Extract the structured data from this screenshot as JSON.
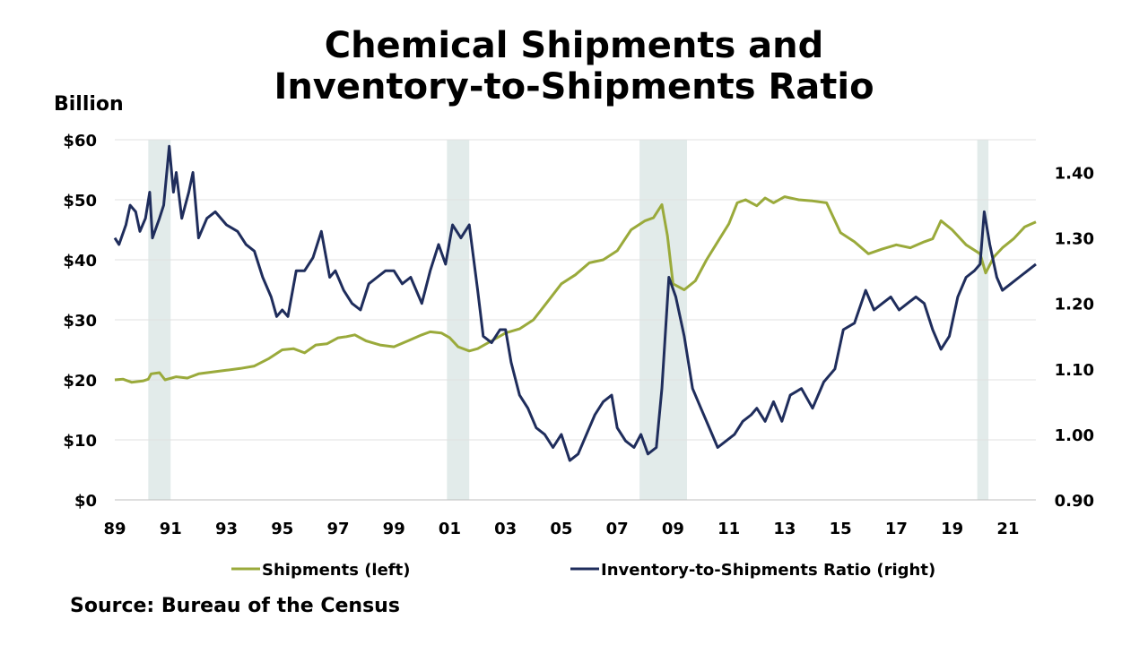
{
  "title_line1": "Chemical Shipments and",
  "title_line2": "Inventory-to-Shipments Ratio",
  "unit_label": "Billion",
  "source": "Source: Bureau of the Census",
  "chart_data": {
    "type": "line",
    "x_range": [
      1989,
      2022
    ],
    "x_tick_labels": [
      "89",
      "91",
      "93",
      "95",
      "97",
      "99",
      "01",
      "03",
      "05",
      "07",
      "09",
      "11",
      "13",
      "15",
      "17",
      "19",
      "21"
    ],
    "x_tick_years": [
      1989,
      1991,
      1993,
      1995,
      1997,
      1999,
      2001,
      2003,
      2005,
      2007,
      2009,
      2011,
      2013,
      2015,
      2017,
      2019,
      2021
    ],
    "y_left": {
      "range": [
        0,
        60
      ],
      "ticks": [
        0,
        10,
        20,
        30,
        40,
        50,
        60
      ],
      "tick_labels": [
        "$0",
        "$10",
        "$20",
        "$30",
        "$40",
        "$50",
        "$60"
      ]
    },
    "y_right": {
      "range": [
        0.9,
        1.45
      ],
      "ticks": [
        0.9,
        1.0,
        1.1,
        1.2,
        1.3,
        1.4
      ],
      "tick_labels": [
        "0.90",
        "1.00",
        "1.10",
        "1.20",
        "1.30",
        "1.40"
      ]
    },
    "gridlines": true,
    "legend_position": "bottom",
    "recessions": [
      [
        1990.2,
        1991.0
      ],
      [
        2000.9,
        2001.7
      ],
      [
        2007.8,
        2009.5
      ],
      [
        2019.9,
        2020.3
      ]
    ],
    "series": [
      {
        "name": "Shipments (left)",
        "axis": "left",
        "color": "#9aaa3b",
        "points": [
          [
            1989.0,
            20.0
          ],
          [
            1989.3,
            20.1
          ],
          [
            1989.6,
            19.6
          ],
          [
            1990.0,
            19.8
          ],
          [
            1990.2,
            20.1
          ],
          [
            1990.3,
            21.0
          ],
          [
            1990.6,
            21.2
          ],
          [
            1990.8,
            20.0
          ],
          [
            1991.2,
            20.5
          ],
          [
            1991.6,
            20.3
          ],
          [
            1992.0,
            21.0
          ],
          [
            1992.5,
            21.3
          ],
          [
            1993.0,
            21.6
          ],
          [
            1993.5,
            21.9
          ],
          [
            1994.0,
            22.3
          ],
          [
            1994.5,
            23.5
          ],
          [
            1995.0,
            25.0
          ],
          [
            1995.4,
            25.2
          ],
          [
            1995.8,
            24.5
          ],
          [
            1996.2,
            25.8
          ],
          [
            1996.6,
            26.0
          ],
          [
            1997.0,
            27.0
          ],
          [
            1997.3,
            27.2
          ],
          [
            1997.6,
            27.5
          ],
          [
            1998.0,
            26.5
          ],
          [
            1998.5,
            25.8
          ],
          [
            1999.0,
            25.5
          ],
          [
            1999.5,
            26.5
          ],
          [
            2000.0,
            27.5
          ],
          [
            2000.3,
            28.0
          ],
          [
            2000.7,
            27.8
          ],
          [
            2001.0,
            27.0
          ],
          [
            2001.3,
            25.5
          ],
          [
            2001.7,
            24.8
          ],
          [
            2002.0,
            25.2
          ],
          [
            2002.5,
            26.5
          ],
          [
            2003.0,
            27.8
          ],
          [
            2003.5,
            28.5
          ],
          [
            2004.0,
            30.0
          ],
          [
            2004.5,
            33.0
          ],
          [
            2005.0,
            36.0
          ],
          [
            2005.5,
            37.5
          ],
          [
            2006.0,
            39.5
          ],
          [
            2006.5,
            40.0
          ],
          [
            2007.0,
            41.5
          ],
          [
            2007.5,
            45.0
          ],
          [
            2008.0,
            46.5
          ],
          [
            2008.3,
            47.0
          ],
          [
            2008.6,
            49.2
          ],
          [
            2008.8,
            44.0
          ],
          [
            2009.0,
            36.0
          ],
          [
            2009.4,
            35.0
          ],
          [
            2009.8,
            36.5
          ],
          [
            2010.2,
            40.0
          ],
          [
            2010.6,
            43.0
          ],
          [
            2011.0,
            46.0
          ],
          [
            2011.3,
            49.5
          ],
          [
            2011.6,
            50.0
          ],
          [
            2012.0,
            49.0
          ],
          [
            2012.3,
            50.3
          ],
          [
            2012.6,
            49.5
          ],
          [
            2013.0,
            50.5
          ],
          [
            2013.5,
            50.0
          ],
          [
            2014.0,
            49.8
          ],
          [
            2014.5,
            49.5
          ],
          [
            2015.0,
            44.5
          ],
          [
            2015.5,
            43.0
          ],
          [
            2016.0,
            41.0
          ],
          [
            2016.5,
            41.8
          ],
          [
            2017.0,
            42.5
          ],
          [
            2017.5,
            42.0
          ],
          [
            2018.0,
            43.0
          ],
          [
            2018.3,
            43.5
          ],
          [
            2018.6,
            46.5
          ],
          [
            2019.0,
            45.0
          ],
          [
            2019.5,
            42.5
          ],
          [
            2020.0,
            41.0
          ],
          [
            2020.2,
            37.8
          ],
          [
            2020.5,
            40.5
          ],
          [
            2020.8,
            42.0
          ],
          [
            2021.2,
            43.5
          ],
          [
            2021.6,
            45.5
          ],
          [
            2022.0,
            46.3
          ]
        ]
      },
      {
        "name": "Inventory-to-Shipments Ratio (right)",
        "axis": "right",
        "color": "#1f2d5c",
        "points": [
          [
            1989.0,
            1.3
          ],
          [
            1989.15,
            1.29
          ],
          [
            1989.4,
            1.32
          ],
          [
            1989.55,
            1.35
          ],
          [
            1989.75,
            1.34
          ],
          [
            1989.9,
            1.31
          ],
          [
            1990.1,
            1.33
          ],
          [
            1990.25,
            1.37
          ],
          [
            1990.35,
            1.3
          ],
          [
            1990.6,
            1.33
          ],
          [
            1990.75,
            1.35
          ],
          [
            1990.95,
            1.44
          ],
          [
            1991.1,
            1.37
          ],
          [
            1991.2,
            1.4
          ],
          [
            1991.4,
            1.33
          ],
          [
            1991.65,
            1.37
          ],
          [
            1991.8,
            1.4
          ],
          [
            1992.0,
            1.3
          ],
          [
            1992.3,
            1.33
          ],
          [
            1992.6,
            1.34
          ],
          [
            1993.0,
            1.32
          ],
          [
            1993.4,
            1.31
          ],
          [
            1993.7,
            1.29
          ],
          [
            1994.0,
            1.28
          ],
          [
            1994.3,
            1.24
          ],
          [
            1994.6,
            1.21
          ],
          [
            1994.8,
            1.18
          ],
          [
            1995.0,
            1.19
          ],
          [
            1995.2,
            1.18
          ],
          [
            1995.5,
            1.25
          ],
          [
            1995.8,
            1.25
          ],
          [
            1996.1,
            1.27
          ],
          [
            1996.4,
            1.31
          ],
          [
            1996.7,
            1.24
          ],
          [
            1996.9,
            1.25
          ],
          [
            1997.2,
            1.22
          ],
          [
            1997.5,
            1.2
          ],
          [
            1997.8,
            1.19
          ],
          [
            1998.1,
            1.23
          ],
          [
            1998.4,
            1.24
          ],
          [
            1998.7,
            1.25
          ],
          [
            1999.0,
            1.25
          ],
          [
            1999.3,
            1.23
          ],
          [
            1999.6,
            1.24
          ],
          [
            2000.0,
            1.2
          ],
          [
            2000.3,
            1.25
          ],
          [
            2000.6,
            1.29
          ],
          [
            2000.85,
            1.26
          ],
          [
            2001.1,
            1.32
          ],
          [
            2001.4,
            1.3
          ],
          [
            2001.7,
            1.32
          ],
          [
            2002.0,
            1.22
          ],
          [
            2002.2,
            1.15
          ],
          [
            2002.5,
            1.14
          ],
          [
            2002.8,
            1.16
          ],
          [
            2003.0,
            1.16
          ],
          [
            2003.2,
            1.11
          ],
          [
            2003.5,
            1.06
          ],
          [
            2003.8,
            1.04
          ],
          [
            2004.1,
            1.01
          ],
          [
            2004.4,
            1.0
          ],
          [
            2004.7,
            0.98
          ],
          [
            2005.0,
            1.0
          ],
          [
            2005.3,
            0.96
          ],
          [
            2005.6,
            0.97
          ],
          [
            2005.9,
            1.0
          ],
          [
            2006.2,
            1.03
          ],
          [
            2006.5,
            1.05
          ],
          [
            2006.8,
            1.06
          ],
          [
            2007.0,
            1.01
          ],
          [
            2007.3,
            0.99
          ],
          [
            2007.6,
            0.98
          ],
          [
            2007.85,
            1.0
          ],
          [
            2008.1,
            0.97
          ],
          [
            2008.4,
            0.98
          ],
          [
            2008.6,
            1.07
          ],
          [
            2008.85,
            1.24
          ],
          [
            2009.1,
            1.21
          ],
          [
            2009.4,
            1.15
          ],
          [
            2009.7,
            1.07
          ],
          [
            2010.0,
            1.04
          ],
          [
            2010.3,
            1.01
          ],
          [
            2010.6,
            0.98
          ],
          [
            2010.9,
            0.99
          ],
          [
            2011.2,
            1.0
          ],
          [
            2011.5,
            1.02
          ],
          [
            2011.8,
            1.03
          ],
          [
            2012.0,
            1.04
          ],
          [
            2012.3,
            1.02
          ],
          [
            2012.6,
            1.05
          ],
          [
            2012.9,
            1.02
          ],
          [
            2013.2,
            1.06
          ],
          [
            2013.6,
            1.07
          ],
          [
            2014.0,
            1.04
          ],
          [
            2014.4,
            1.08
          ],
          [
            2014.8,
            1.1
          ],
          [
            2015.1,
            1.16
          ],
          [
            2015.5,
            1.17
          ],
          [
            2015.9,
            1.22
          ],
          [
            2016.2,
            1.19
          ],
          [
            2016.5,
            1.2
          ],
          [
            2016.8,
            1.21
          ],
          [
            2017.1,
            1.19
          ],
          [
            2017.4,
            1.2
          ],
          [
            2017.7,
            1.21
          ],
          [
            2018.0,
            1.2
          ],
          [
            2018.3,
            1.16
          ],
          [
            2018.6,
            1.13
          ],
          [
            2018.9,
            1.15
          ],
          [
            2019.2,
            1.21
          ],
          [
            2019.5,
            1.24
          ],
          [
            2019.8,
            1.25
          ],
          [
            2020.0,
            1.26
          ],
          [
            2020.15,
            1.34
          ],
          [
            2020.35,
            1.29
          ],
          [
            2020.6,
            1.24
          ],
          [
            2020.8,
            1.22
          ],
          [
            2021.1,
            1.23
          ],
          [
            2021.4,
            1.24
          ],
          [
            2021.7,
            1.25
          ],
          [
            2022.0,
            1.26
          ]
        ]
      }
    ]
  }
}
